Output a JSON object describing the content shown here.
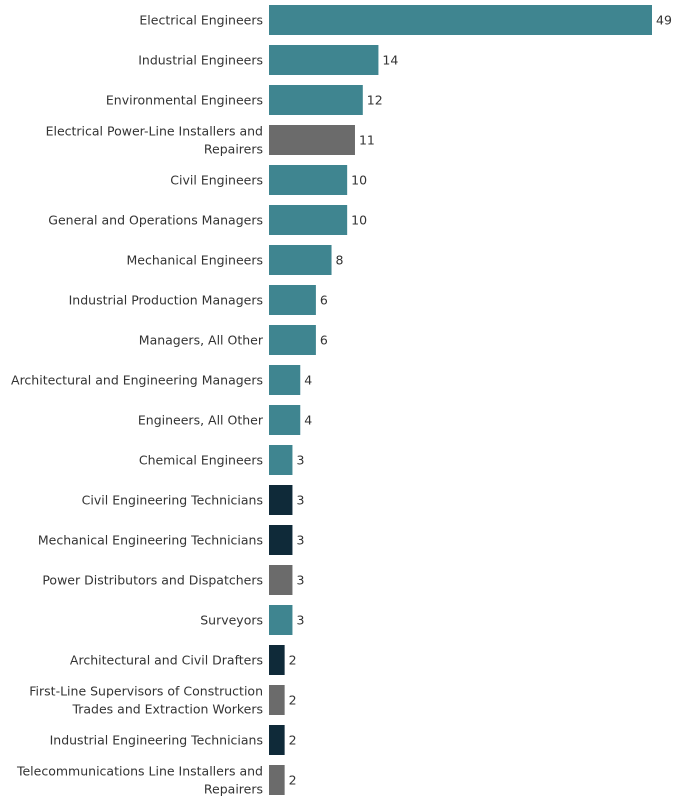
{
  "chart_data": {
    "type": "bar",
    "orientation": "horizontal",
    "title": "",
    "xlabel": "",
    "ylabel": "",
    "grid": false,
    "legend": "none",
    "xlim": [
      0,
      49
    ],
    "colors": {
      "teal": "#3f8590",
      "gray": "#6b6b6b",
      "navy": "#0f2a39"
    },
    "bars": [
      {
        "label": "Electrical Engineers",
        "value": 49,
        "color": "teal"
      },
      {
        "label": "Industrial Engineers",
        "value": 14,
        "color": "teal"
      },
      {
        "label": "Environmental Engineers",
        "value": 12,
        "color": "teal"
      },
      {
        "label": "Electrical Power-Line Installers and Repairers",
        "lines": [
          "Electrical Power-Line Installers and",
          "Repairers"
        ],
        "value": 11,
        "color": "gray"
      },
      {
        "label": "Civil Engineers",
        "value": 10,
        "color": "teal"
      },
      {
        "label": "General and Operations Managers",
        "value": 10,
        "color": "teal"
      },
      {
        "label": "Mechanical Engineers",
        "value": 8,
        "color": "teal"
      },
      {
        "label": "Industrial Production Managers",
        "value": 6,
        "color": "teal"
      },
      {
        "label": "Managers, All Other",
        "value": 6,
        "color": "teal"
      },
      {
        "label": "Architectural and Engineering Managers",
        "value": 4,
        "color": "teal"
      },
      {
        "label": "Engineers, All Other",
        "value": 4,
        "color": "teal"
      },
      {
        "label": "Chemical Engineers",
        "value": 3,
        "color": "teal"
      },
      {
        "label": "Civil Engineering Technicians",
        "value": 3,
        "color": "navy"
      },
      {
        "label": "Mechanical Engineering Technicians",
        "value": 3,
        "color": "navy"
      },
      {
        "label": "Power Distributors and Dispatchers",
        "value": 3,
        "color": "gray"
      },
      {
        "label": "Surveyors",
        "value": 3,
        "color": "teal"
      },
      {
        "label": "Architectural and Civil Drafters",
        "value": 2,
        "color": "navy"
      },
      {
        "label": "First-Line Supervisors of Construction Trades and Extraction Workers",
        "lines": [
          "First-Line Supervisors of Construction",
          "Trades and Extraction Workers"
        ],
        "value": 2,
        "color": "gray"
      },
      {
        "label": "Industrial Engineering Technicians",
        "value": 2,
        "color": "navy"
      },
      {
        "label": "Telecommunications Line Installers and Repairers",
        "lines": [
          "Telecommunications Line Installers and",
          "Repairers"
        ],
        "value": 2,
        "color": "gray"
      }
    ]
  }
}
